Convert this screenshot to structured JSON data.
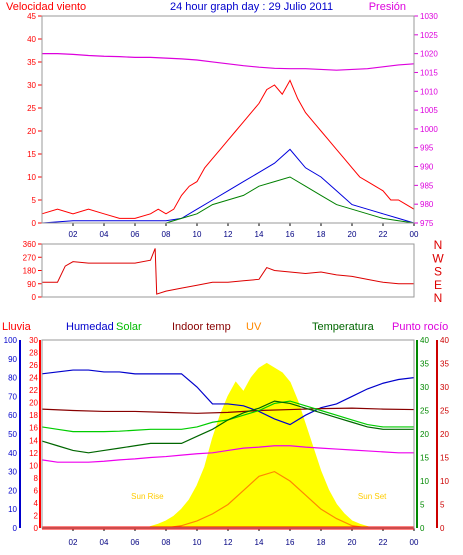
{
  "chart_data": [
    {
      "id": "wind",
      "type": "line",
      "title": "24 hour graph day : 29 Julio 2011",
      "ylabel_left": "Velocidad viento",
      "ylabel_right": "Presión",
      "x_ticks": [
        "02",
        "04",
        "06",
        "08",
        "10",
        "12",
        "14",
        "16",
        "18",
        "20",
        "22",
        "00"
      ],
      "ylim_left": [
        0,
        45
      ],
      "yticks_left": [
        0,
        5,
        10,
        15,
        20,
        25,
        30,
        35,
        40,
        45
      ],
      "ylim_right": [
        975,
        1030
      ],
      "yticks_right": [
        975,
        980,
        985,
        990,
        995,
        1000,
        1005,
        1010,
        1015,
        1020,
        1025,
        1030,
        1035
      ],
      "series": [
        {
          "role": "gust",
          "color": "#ff0000",
          "x": [
            0,
            1,
            2,
            3,
            4,
            5,
            6,
            7,
            7.5,
            8,
            8.5,
            9,
            9.5,
            10,
            10.5,
            11,
            11.5,
            12,
            12.5,
            13,
            13.5,
            14,
            14.5,
            15,
            15.5,
            16,
            16.5,
            17,
            17.5,
            18,
            18.5,
            19,
            19.5,
            20,
            20.5,
            21,
            21.5,
            22,
            22.5,
            23,
            23.5,
            24
          ],
          "y": [
            2,
            3,
            2,
            3,
            2,
            1,
            1,
            2,
            3,
            2,
            3,
            6,
            8,
            9,
            12,
            14,
            16,
            18,
            20,
            22,
            24,
            26,
            29,
            30,
            28,
            31,
            27,
            24,
            22,
            20,
            18,
            16,
            14,
            12,
            10,
            9,
            8,
            7,
            5,
            5,
            4,
            3
          ]
        },
        {
          "role": "average",
          "color": "#0000dd",
          "x": [
            0,
            2,
            4,
            6,
            8,
            9,
            10,
            11,
            12,
            13,
            14,
            15,
            16,
            17,
            18,
            19,
            20,
            21,
            22,
            23,
            24
          ],
          "y": [
            0,
            0.5,
            0.5,
            0.5,
            0.5,
            1,
            3,
            5,
            7,
            9,
            11,
            13,
            16,
            12,
            10,
            7,
            4,
            3,
            2,
            1,
            0
          ]
        },
        {
          "role": "wind-speed",
          "color": "#008000",
          "x": [
            0,
            2,
            4,
            6,
            8,
            9,
            10,
            11,
            12,
            13,
            14,
            15,
            16,
            17,
            18,
            19,
            20,
            21,
            22,
            23,
            24
          ],
          "y": [
            0,
            0,
            0,
            0,
            0,
            1,
            2,
            4,
            5,
            6,
            8,
            9,
            10,
            8,
            6,
            4,
            3,
            2,
            1,
            0.5,
            0
          ]
        },
        {
          "role": "pressure",
          "axis": "right",
          "color": "#dd00dd",
          "x": [
            0,
            1,
            2,
            3,
            4,
            5,
            6,
            7,
            8,
            9,
            10,
            11,
            12,
            13,
            14,
            15,
            16,
            17,
            18,
            19,
            20,
            21,
            22,
            23,
            24
          ],
          "y": [
            1020,
            1020,
            1019.8,
            1019.5,
            1019.3,
            1019.2,
            1019,
            1019,
            1018.8,
            1018.6,
            1018.3,
            1017.8,
            1017.3,
            1016.8,
            1016.4,
            1016.1,
            1016,
            1016,
            1015.8,
            1015.6,
            1015.8,
            1016,
            1016.5,
            1017,
            1017.3
          ]
        }
      ]
    },
    {
      "id": "direction",
      "type": "line",
      "ylim": [
        0,
        360
      ],
      "yticks": [
        0,
        90,
        180,
        270,
        360
      ],
      "compass": [
        "N",
        "W",
        "S",
        "E",
        "N"
      ],
      "series": [
        {
          "role": "wind-direction",
          "color": "#dd0000",
          "x": [
            0,
            1,
            1.5,
            2,
            3,
            4,
            5,
            6,
            7,
            7.3,
            7.4,
            8,
            9,
            10,
            11,
            12,
            13,
            14,
            14.5,
            15,
            16,
            17,
            18,
            19,
            20,
            21,
            22,
            23,
            24
          ],
          "y": [
            100,
            100,
            210,
            240,
            230,
            230,
            230,
            230,
            250,
            330,
            20,
            40,
            60,
            80,
            100,
            100,
            110,
            120,
            200,
            180,
            170,
            160,
            170,
            150,
            140,
            120,
            100,
            90,
            90
          ]
        }
      ]
    },
    {
      "id": "climate",
      "type": "line",
      "labels_top": [
        "Lluvia",
        "Humedad",
        "Solar",
        "Indoor temp",
        "UV",
        "Temperatura",
        "Punto rocío"
      ],
      "annotations": [
        "Sun Rise",
        "Sun Set"
      ],
      "sunrise_x": 6.8,
      "sunset_x": 21.3,
      "axes": {
        "rain": {
          "ticks": [
            0,
            2,
            4,
            6,
            8,
            10,
            12,
            14,
            16,
            18,
            20,
            22,
            24,
            26,
            28,
            30
          ],
          "range": [
            0,
            30
          ]
        },
        "humidity": {
          "ticks": [
            0,
            10,
            20,
            30,
            40,
            50,
            60,
            70,
            80,
            90,
            100
          ],
          "range": [
            0,
            100
          ]
        },
        "solar": {
          "ticks": [
            0,
            5,
            10,
            15,
            20,
            25,
            30,
            35,
            40
          ],
          "range": [
            0,
            40
          ]
        },
        "temperature": {
          "ticks": [
            0,
            5,
            10,
            15,
            20,
            25,
            30,
            35,
            40
          ],
          "range": [
            0,
            40
          ]
        }
      },
      "series": [
        {
          "role": "humidity",
          "axis": "humidity",
          "color": "#0000cc",
          "x": [
            0,
            1,
            2,
            3,
            4,
            5,
            6,
            7,
            8,
            9,
            10,
            11,
            12,
            13,
            14,
            15,
            16,
            17,
            18,
            19,
            20,
            21,
            22,
            23,
            24
          ],
          "y": [
            82,
            83,
            84,
            84,
            83,
            83,
            82,
            82,
            82,
            82,
            75,
            66,
            66,
            65,
            62,
            58,
            55,
            60,
            64,
            66,
            70,
            74,
            77,
            79,
            80
          ]
        },
        {
          "role": "indoor-temp",
          "axis": "temperature",
          "color": "#880000",
          "x": [
            0,
            2,
            4,
            6,
            8,
            10,
            12,
            14,
            16,
            18,
            20,
            22,
            24
          ],
          "y": [
            25.3,
            25,
            24.8,
            24.8,
            24.6,
            24.4,
            24.6,
            25,
            25.2,
            25.4,
            25.5,
            25.3,
            25.2
          ]
        },
        {
          "role": "solar",
          "axis": "solar",
          "color": "#00cc00",
          "x": [
            0,
            1,
            2,
            3,
            4,
            5,
            6,
            7,
            8,
            9,
            10,
            11,
            12,
            13,
            14,
            15,
            16,
            17,
            18,
            19,
            20,
            21,
            22,
            23,
            24
          ],
          "y": [
            21.5,
            21,
            20.5,
            20.5,
            20.5,
            20.6,
            20.8,
            21,
            21,
            21,
            21.5,
            22.5,
            23,
            24,
            25,
            26.5,
            27,
            26,
            25,
            24,
            23,
            22,
            21.5,
            21.5,
            21.5
          ]
        },
        {
          "role": "temperature",
          "axis": "temperature",
          "color": "#006600",
          "x": [
            0,
            1,
            2,
            3,
            4,
            5,
            6,
            7,
            8,
            9,
            10,
            11,
            12,
            13,
            14,
            15,
            16,
            17,
            18,
            19,
            20,
            21,
            22,
            23,
            24
          ],
          "y": [
            18.5,
            17.5,
            16.5,
            16,
            16.5,
            17,
            17.5,
            18,
            18,
            18,
            19.5,
            21,
            23,
            24.5,
            25.5,
            27,
            26.5,
            25.5,
            24.5,
            23.5,
            22.5,
            21.5,
            21,
            21,
            21
          ]
        },
        {
          "role": "dew-point",
          "axis": "temperature",
          "color": "#ee00ee",
          "x": [
            0,
            1,
            2,
            3,
            4,
            5,
            6,
            7,
            8,
            9,
            10,
            11,
            12,
            13,
            14,
            15,
            16,
            17,
            18,
            19,
            20,
            21,
            22,
            23,
            24
          ],
          "y": [
            14.5,
            14,
            14,
            14,
            14.2,
            14.5,
            14.7,
            15,
            15.2,
            15.5,
            15.8,
            16,
            16.5,
            17,
            17.2,
            17.5,
            17.5,
            17.2,
            17,
            16.8,
            16.6,
            16.4,
            16.2,
            16,
            16
          ]
        },
        {
          "role": "solar-radiation",
          "axis": "solar",
          "color": "#ffff00",
          "x": [
            0,
            6.8,
            7,
            7.5,
            8,
            8.5,
            9,
            9.5,
            10,
            10.5,
            11,
            11.5,
            12,
            12.5,
            13,
            13.5,
            14,
            14.5,
            15,
            15.5,
            16,
            16.5,
            17,
            17.5,
            18,
            18.5,
            19,
            19.5,
            20,
            20.5,
            21,
            21.3,
            24
          ],
          "y": [
            0,
            0,
            0.3,
            0.8,
            1.5,
            2.5,
            4,
            6,
            9,
            13,
            19,
            24,
            28,
            31,
            29,
            32,
            34,
            35,
            34,
            33,
            31,
            27,
            22,
            17,
            12,
            8,
            5,
            3,
            1.5,
            0.8,
            0.3,
            0,
            0
          ]
        },
        {
          "role": "uv",
          "axis": "temperature",
          "color": "#ff8800",
          "x": [
            0,
            8,
            9,
            10,
            11,
            12,
            13,
            14,
            15,
            16,
            17,
            18,
            19,
            20,
            21,
            24
          ],
          "y": [
            0,
            0,
            0.5,
            1.5,
            3,
            5,
            8,
            11,
            12,
            10,
            7,
            4,
            2,
            0.5,
            0,
            0
          ]
        },
        {
          "role": "rain",
          "axis": "rain",
          "color": "#ff0000",
          "x": [
            0,
            24
          ],
          "y": [
            0,
            0
          ]
        }
      ]
    }
  ]
}
